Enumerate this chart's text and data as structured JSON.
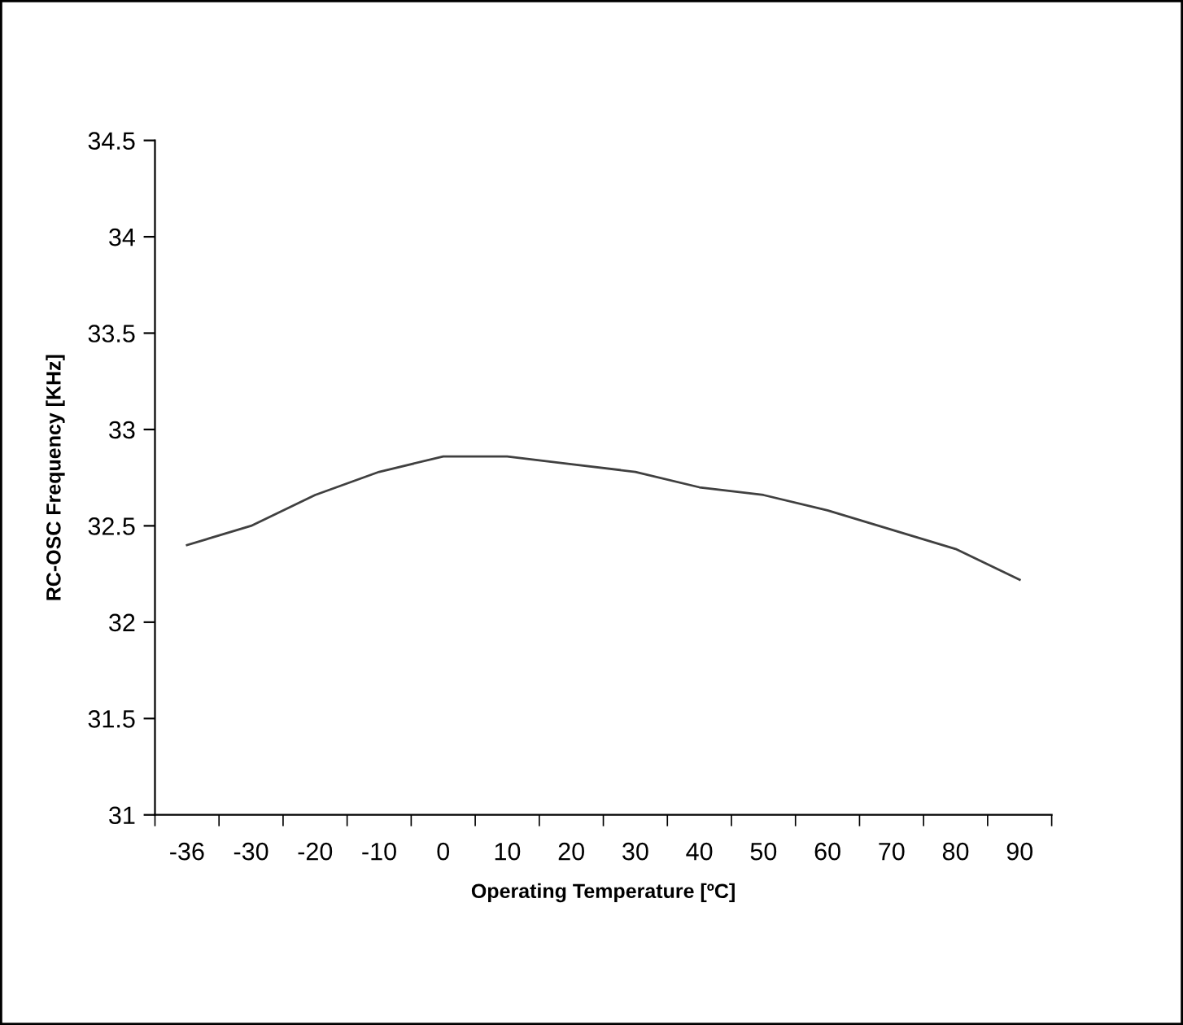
{
  "chart_data": {
    "type": "line",
    "xlabel": "Operating Temperature [ºC]",
    "ylabel": "RC-OSC Frequency [KHz]",
    "categories": [
      "-36",
      "-30",
      "-20",
      "-10",
      "0",
      "10",
      "20",
      "30",
      "40",
      "50",
      "60",
      "70",
      "80",
      "90"
    ],
    "series": [
      {
        "color": "#404040",
        "values": [
          32.4,
          32.5,
          32.66,
          32.78,
          32.86,
          32.86,
          32.82,
          32.78,
          32.7,
          32.66,
          32.58,
          32.48,
          32.38,
          32.22
        ]
      }
    ],
    "ylim": [
      31,
      34.5
    ],
    "yticks": [
      31,
      31.5,
      32,
      32.5,
      33,
      33.5,
      34,
      34.5
    ],
    "grid": false,
    "marker": "none",
    "line_style": "solid"
  }
}
